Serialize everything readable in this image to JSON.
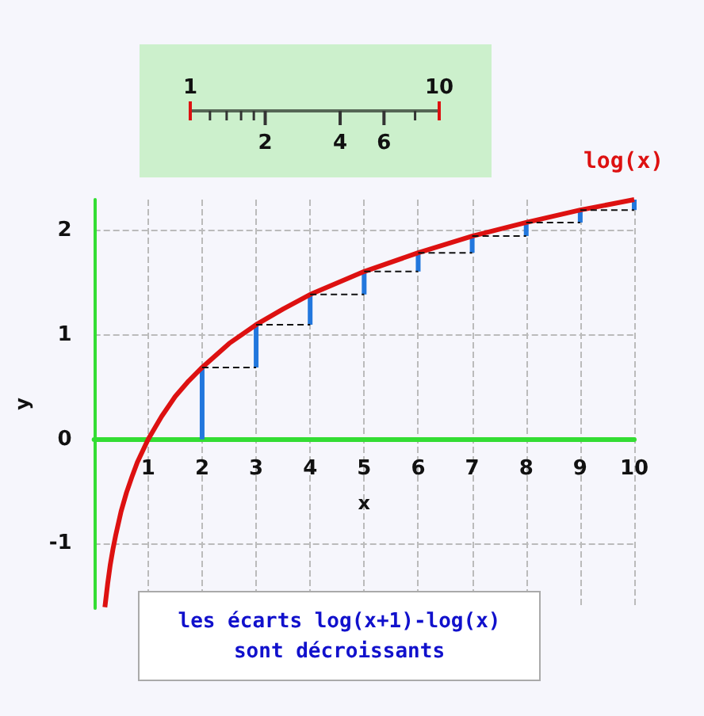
{
  "chart_data": [
    {
      "type": "other",
      "annotations": [
        "1",
        "10",
        "2",
        "4",
        "6"
      ]
    },
    {
      "type": "line",
      "xlabel": "x",
      "ylabel": "y",
      "xlim": [
        0,
        10
      ],
      "ylim": [
        -1.62,
        2.3
      ],
      "xticks": [
        1,
        2,
        3,
        4,
        5,
        6,
        7,
        8,
        9,
        10
      ],
      "yticks": [
        -1,
        0,
        1,
        2
      ],
      "grid": true,
      "series": [
        {
          "name": "log(x)",
          "color": "#dd1111",
          "x": [
            0.2,
            0.25,
            0.3,
            0.35,
            0.4,
            0.5,
            0.6,
            0.7,
            0.8,
            0.9,
            1,
            1.25,
            1.5,
            1.75,
            2,
            2.5,
            3,
            3.5,
            4,
            4.5,
            5,
            6,
            7,
            8,
            9,
            10
          ],
          "values": [
            -1.61,
            -1.39,
            -1.2,
            -1.05,
            -0.92,
            -0.69,
            -0.51,
            -0.36,
            -0.22,
            -0.11,
            0,
            0.22,
            0.41,
            0.56,
            0.69,
            0.92,
            1.1,
            1.25,
            1.39,
            1.5,
            1.61,
            1.79,
            1.95,
            2.08,
            2.2,
            2.3
          ]
        },
        {
          "type": "bar",
          "color": "#2277dd",
          "x": [
            2,
            3,
            4,
            5,
            6,
            7,
            8,
            9,
            10
          ],
          "base": [
            0,
            0.69,
            1.1,
            1.39,
            1.61,
            1.79,
            1.95,
            2.08,
            2.2
          ],
          "values": [
            0.69,
            0.41,
            0.29,
            0.22,
            0.18,
            0.16,
            0.13,
            0.12,
            0.1
          ]
        },
        {
          "color": "#111111",
          "line_style": "dashed",
          "x": [
            2,
            3
          ],
          "values": [
            0.69,
            0.69
          ]
        },
        {
          "color": "#111111",
          "line_style": "dashed",
          "x": [
            3,
            4
          ],
          "values": [
            1.1,
            1.1
          ]
        },
        {
          "color": "#111111",
          "line_style": "dashed",
          "x": [
            4,
            5
          ],
          "values": [
            1.39,
            1.39
          ]
        },
        {
          "color": "#111111",
          "line_style": "dashed",
          "x": [
            5,
            6
          ],
          "values": [
            1.61,
            1.61
          ]
        },
        {
          "color": "#111111",
          "line_style": "dashed",
          "x": [
            6,
            7
          ],
          "values": [
            1.79,
            1.79
          ]
        },
        {
          "color": "#111111",
          "line_style": "dashed",
          "x": [
            7,
            8
          ],
          "values": [
            1.95,
            1.95
          ]
        },
        {
          "color": "#111111",
          "line_style": "dashed",
          "x": [
            8,
            9
          ],
          "values": [
            2.08,
            2.08
          ]
        },
        {
          "color": "#111111",
          "line_style": "dashed",
          "x": [
            9,
            10
          ],
          "values": [
            2.2,
            2.2
          ]
        }
      ],
      "annotations": [
        "les écarts log(x+1)-log(x) sont décroissants"
      ]
    }
  ]
}
